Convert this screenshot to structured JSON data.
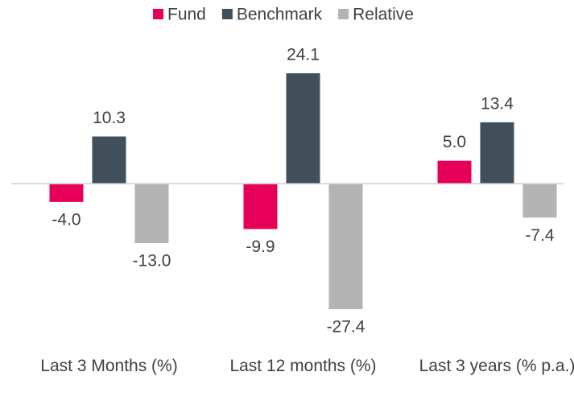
{
  "chart_data": {
    "type": "bar",
    "categories": [
      "Last 3 Months (%)",
      "Last 12 months (%)",
      "Last 3 years (% p.a.)"
    ],
    "series": [
      {
        "name": "Fund",
        "color": "#e6005a",
        "values": [
          -4.0,
          -9.9,
          5.0
        ],
        "value_labels": [
          "-4.0",
          "-9.9",
          "5.0"
        ]
      },
      {
        "name": "Benchmark",
        "color": "#414f5a",
        "values": [
          10.3,
          24.1,
          13.4
        ],
        "value_labels": [
          "10.3",
          "24.1",
          "13.4"
        ]
      },
      {
        "name": "Relative",
        "color": "#b3b3b3",
        "values": [
          -13.0,
          -27.4,
          -7.4
        ],
        "value_labels": [
          "-13.0",
          "-27.4",
          "-7.4"
        ]
      }
    ],
    "legend": "top"
  }
}
